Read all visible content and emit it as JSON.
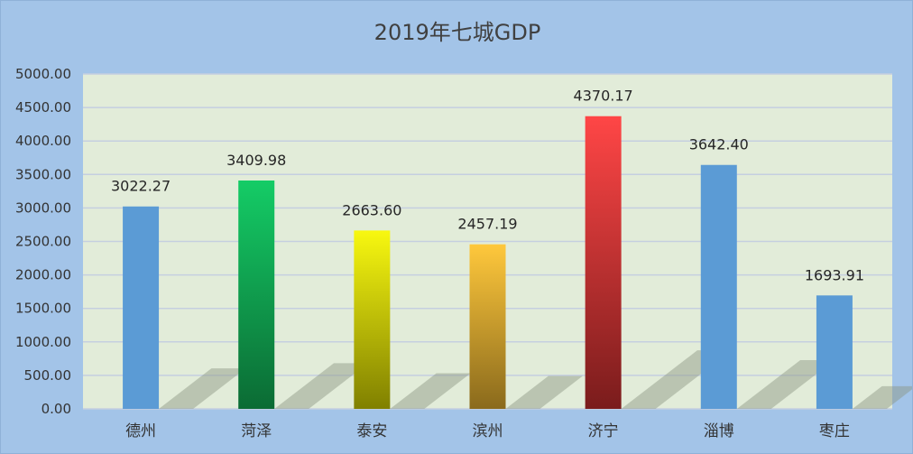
{
  "chart_data": {
    "type": "bar",
    "title": "2019年七城GDP",
    "xlabel": "",
    "ylabel": "",
    "ylim": [
      0,
      5000
    ],
    "ytick_step": 500,
    "ytick_labels": [
      "0.00",
      "500.00",
      "1000.00",
      "1500.00",
      "2000.00",
      "2500.00",
      "3000.00",
      "3500.00",
      "4000.00",
      "4500.00",
      "5000.00"
    ],
    "grid": true,
    "legend": "none",
    "categories": [
      "德州",
      "菏泽",
      "泰安",
      "滨州",
      "济宁",
      "淄博",
      "枣庄"
    ],
    "values": [
      3022.27,
      3409.98,
      2663.6,
      2457.19,
      4370.17,
      3642.4,
      1693.91
    ],
    "value_labels": [
      "3022.27",
      "3409.98",
      "2663.60",
      "2457.19",
      "4370.17",
      "3642.40",
      "1693.91"
    ],
    "bar_styles": [
      "blue",
      "green",
      "yellow",
      "orange",
      "red",
      "blue",
      "blue"
    ]
  },
  "colors": {
    "frame_bg": "#a3c4e8",
    "plot_bg": "#e2ecd9",
    "gridline": "#c5cfe0",
    "blue_bar": "#5b9bd5",
    "green_top": "#14cc66",
    "green_bottom": "#0b6b34",
    "yellow_top": "#f8f810",
    "yellow_bottom": "#808000",
    "orange_top": "#ffc83c",
    "orange_bottom": "#8a6a1c",
    "red_top": "#ff4646",
    "red_bottom": "#7a1c1c"
  }
}
